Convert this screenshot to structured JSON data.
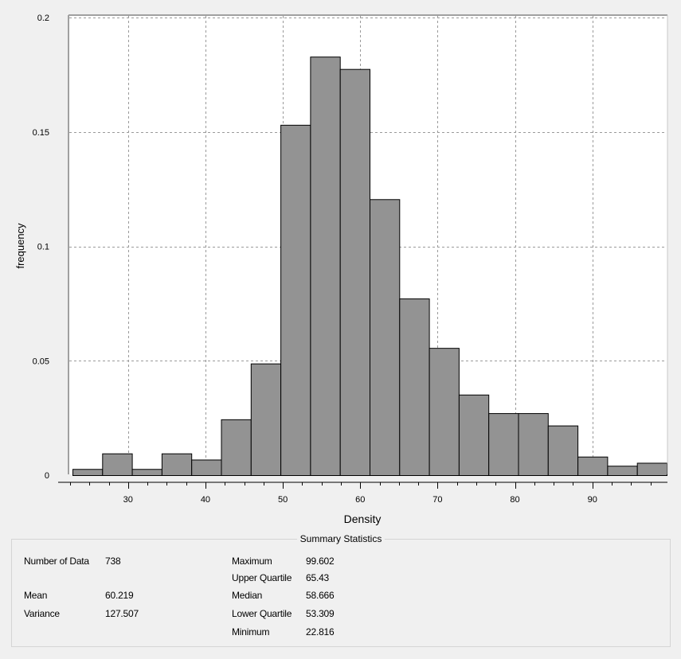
{
  "chart_data": {
    "type": "bar",
    "title": "",
    "xlabel": "Density",
    "ylabel": "frequency",
    "xlim": [
      22.816,
      99.602
    ],
    "ylim": [
      0,
      0.2
    ],
    "x_ticks": [
      30,
      40,
      50,
      60,
      70,
      80,
      90
    ],
    "y_ticks": [
      0,
      0.05,
      0.1,
      0.15,
      0.2
    ],
    "grid": true,
    "bins": [
      {
        "start": 22.816,
        "end": 26.655,
        "value": 0.0027
      },
      {
        "start": 26.655,
        "end": 30.494,
        "value": 0.0095
      },
      {
        "start": 30.494,
        "end": 34.334,
        "value": 0.0027
      },
      {
        "start": 34.334,
        "end": 38.173,
        "value": 0.0095
      },
      {
        "start": 38.173,
        "end": 42.012,
        "value": 0.0068
      },
      {
        "start": 42.012,
        "end": 45.852,
        "value": 0.0244
      },
      {
        "start": 45.852,
        "end": 49.691,
        "value": 0.0488
      },
      {
        "start": 49.691,
        "end": 53.53,
        "value": 0.1531
      },
      {
        "start": 53.53,
        "end": 57.369,
        "value": 0.1829
      },
      {
        "start": 57.369,
        "end": 61.209,
        "value": 0.1775
      },
      {
        "start": 61.209,
        "end": 65.048,
        "value": 0.1206
      },
      {
        "start": 65.048,
        "end": 68.887,
        "value": 0.0772
      },
      {
        "start": 68.887,
        "end": 72.727,
        "value": 0.0556
      },
      {
        "start": 72.727,
        "end": 76.566,
        "value": 0.0352
      },
      {
        "start": 76.566,
        "end": 80.405,
        "value": 0.0271
      },
      {
        "start": 80.405,
        "end": 84.244,
        "value": 0.0271
      },
      {
        "start": 84.244,
        "end": 88.084,
        "value": 0.0217
      },
      {
        "start": 88.084,
        "end": 91.923,
        "value": 0.0081
      },
      {
        "start": 91.923,
        "end": 95.762,
        "value": 0.0041
      },
      {
        "start": 95.762,
        "end": 99.602,
        "value": 0.0054
      }
    ],
    "bar_color": "#939393"
  },
  "summary": {
    "title": "Summary Statistics",
    "number_of_data_label": "Number of Data",
    "number_of_data": "738",
    "mean_label": "Mean",
    "mean": "60.219",
    "variance_label": "Variance",
    "variance": "127.507",
    "maximum_label": "Maximum",
    "maximum": "99.602",
    "upper_quartile_label": "Upper Quartile",
    "upper_quartile": "65.43",
    "median_label": "Median",
    "median": "58.666",
    "lower_quartile_label": "Lower Quartile",
    "lower_quartile": "53.309",
    "minimum_label": "Minimum",
    "minimum": "22.816"
  }
}
